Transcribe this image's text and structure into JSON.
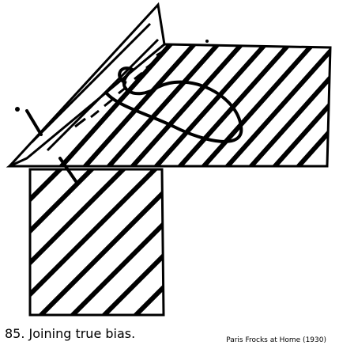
{
  "figure": {
    "caption": "85. Joining true bias.",
    "credit": "Paris Frocks at Home (1930)",
    "illustration": "sewing-diagram-bias-join",
    "stroke_color": "#000000",
    "background_color": "#ffffff"
  }
}
